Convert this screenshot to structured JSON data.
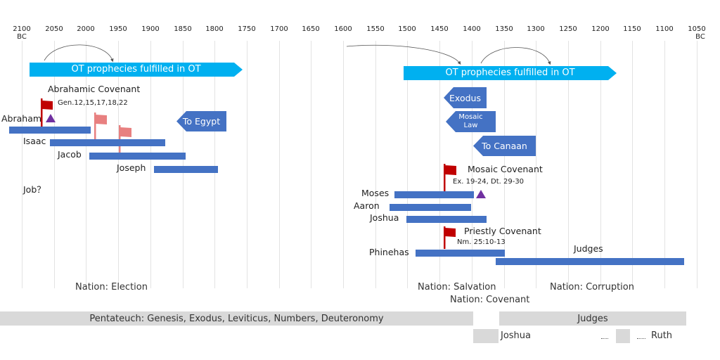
{
  "axis": {
    "ticks": [
      "2100",
      "2050",
      "2000",
      "1950",
      "1900",
      "1850",
      "1800",
      "1750",
      "1700",
      "1650",
      "1600",
      "1550",
      "1500",
      "1450",
      "1400",
      "1350",
      "1300",
      "1250",
      "1200",
      "1150",
      "1100",
      "1050"
    ],
    "era_left": "BC",
    "era_right": "BC"
  },
  "prophecy": {
    "left_label": "OT prophecies fulfilled in OT",
    "right_label": "OT prophecies fulfilled in OT"
  },
  "abrahamic": {
    "title": "Abrahamic Covenant",
    "ref": "Gen.12,15,17,18,22"
  },
  "mosaic": {
    "title": "Mosaic Covenant",
    "ref": "Ex. 19-24, Dt. 29-30"
  },
  "priestly": {
    "title": "Priestly Covenant",
    "ref": "Nm. 25:10-13"
  },
  "movements": {
    "to_egypt": "To Egypt",
    "exodus": "Exodus",
    "mosaic_law_1": "Mosaic",
    "mosaic_law_2": "Law",
    "to_canaan": "To Canaan"
  },
  "people": {
    "abraham": "Abraham",
    "isaac": "Isaac",
    "jacob": "Jacob",
    "joseph": "Joseph",
    "job": "Job？",
    "moses": "Moses",
    "aaron": "Aaron",
    "joshua": "Joshua",
    "phinehas": "Phinehas",
    "judges": "Judges"
  },
  "nations": {
    "election": "Nation: Election",
    "salvation": "Nation: Salvation",
    "covenant": "Nation: Covenant",
    "corruption": "Nation: Corruption"
  },
  "books": {
    "pentateuch": "Pentateuch: Genesis, Exodus, Leviticus, Numbers, Deuteronomy",
    "judges": "Judges",
    "joshua": "Joshua",
    "ruth": "Ruth"
  },
  "colors": {
    "bar": "#4472c4",
    "prophecy_arrow": "#00b0f0",
    "flag_dark": "#c00000",
    "flag_light": "#e88080",
    "triangle": "#7030a0",
    "band": "#d9d9d9"
  }
}
